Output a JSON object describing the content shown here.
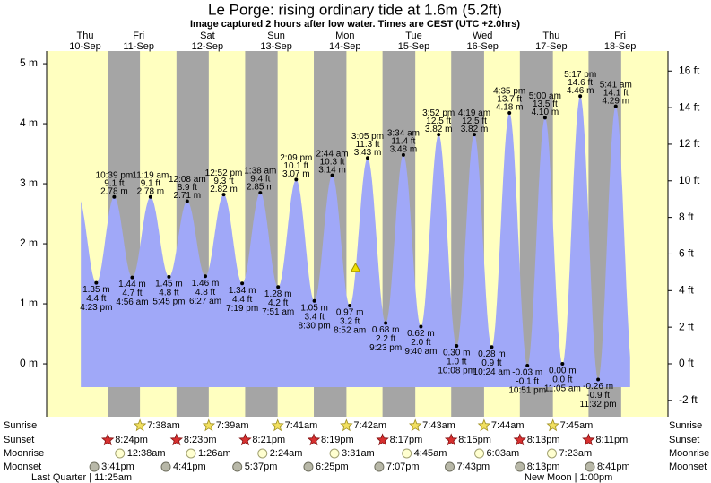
{
  "chart_data": {
    "type": "tide",
    "title": "Le Porge: rising  ordinary tide at 1.6m (5.2ft)",
    "subtitle": "Image captured 2 hours after low water. Times are CEST (UTC +2.0hrs)",
    "days": {
      "names": [
        "Thu",
        "Fri",
        "Sat",
        "Sun",
        "Mon",
        "Tue",
        "Wed",
        "Thu",
        "Fri"
      ],
      "dates": [
        "10-Sep",
        "11-Sep",
        "12-Sep",
        "13-Sep",
        "14-Sep",
        "15-Sep",
        "16-Sep",
        "17-Sep",
        "18-Sep"
      ]
    },
    "extremes": {
      "times": [
        "4:23 pm",
        "10:39 pm",
        "4:56 am",
        "11:19 am",
        "5:45 pm",
        "12:08 am",
        "6:27 am",
        "12:52 pm",
        "7:19 pm",
        "1:38 am",
        "7:51 am",
        "2:09 pm",
        "8:30 pm",
        "2:44 am",
        "8:52 am",
        "3:05 pm",
        "9:23 pm",
        "3:34 am",
        "9:40 am",
        "3:52 pm",
        "10:08 pm",
        "4:19 am",
        "10:24 am",
        "4:35 pm",
        "10:51 pm",
        "5:00 am",
        "11:05 am",
        "5:17 pm",
        "11:32 pm",
        "5:41 am"
      ],
      "values": [
        1.35,
        2.78,
        1.44,
        2.78,
        1.45,
        2.71,
        1.46,
        2.82,
        1.34,
        2.85,
        1.28,
        3.07,
        1.05,
        3.14,
        0.97,
        3.43,
        0.68,
        3.48,
        0.62,
        3.82,
        0.3,
        3.82,
        0.28,
        4.18,
        -0.03,
        4.1,
        0.0,
        4.46,
        -0.26,
        4.29
      ],
      "value_labels": [
        "1.35 m",
        "2.78 m",
        "1.44 m",
        "2.78 m",
        "1.45 m",
        "2.71 m",
        "1.46 m",
        "2.82 m",
        "1.34 m",
        "2.85 m",
        "1.28 m",
        "3.07 m",
        "1.05 m",
        "3.14 m",
        "0.97 m",
        "3.43 m",
        "0.68 m",
        "3.48 m",
        "0.62 m",
        "3.82 m",
        "0.30 m",
        "3.82 m",
        "0.28 m",
        "4.18 m",
        "-0.03 m",
        "4.10 m",
        "0.00 m",
        "4.46 m",
        "-0.26 m",
        "4.29 m"
      ],
      "ft_values": [
        4.4,
        9.1,
        4.7,
        9.1,
        4.8,
        8.9,
        4.8,
        9.3,
        4.4,
        9.4,
        4.2,
        10.1,
        3.4,
        10.3,
        3.2,
        11.3,
        2.2,
        11.4,
        2.0,
        12.5,
        1.0,
        12.5,
        0.9,
        13.7,
        -0.1,
        13.5,
        0.0,
        14.6,
        -0.9,
        14.1
      ],
      "ft_labels": [
        "4.4 ft",
        "9.1 ft",
        "4.7 ft",
        "9.1 ft",
        "4.8 ft",
        "8.9 ft",
        "4.8 ft",
        "9.3 ft",
        "4.4 ft",
        "9.4 ft",
        "4.2 ft",
        "10.1 ft",
        "3.4 ft",
        "10.3 ft",
        "3.2 ft",
        "11.3 ft",
        "2.2 ft",
        "11.4 ft",
        "2.0 ft",
        "12.5 ft",
        "1.0 ft",
        "12.5 ft",
        "0.9 ft",
        "13.7 ft",
        "-0.1 ft",
        "13.5 ft",
        "0.0 ft",
        "14.6 ft",
        "-0.9 ft",
        "14.1 ft"
      ]
    },
    "current": {
      "value": 1.6,
      "hours_after_low": 2
    },
    "ylim": [
      -0.88,
      5.21
    ],
    "yticks": [
      {
        "value": 0,
        "label": "0 m"
      },
      {
        "value": 1,
        "label": "1 m"
      },
      {
        "value": 2,
        "label": "2 m"
      },
      {
        "value": 3,
        "label": "3 m"
      },
      {
        "value": 4,
        "label": "4 m"
      },
      {
        "value": 5,
        "label": "5 m"
      }
    ],
    "y2lim": [
      -2.89,
      17.09
    ],
    "y2ticks": [
      {
        "value": -2,
        "label": "-2 ft"
      },
      {
        "value": 0,
        "label": "0 ft"
      },
      {
        "value": 2,
        "label": "2 ft"
      },
      {
        "value": 4,
        "label": "4 ft"
      },
      {
        "value": 6,
        "label": "6 ft"
      },
      {
        "value": 8,
        "label": "8 ft"
      },
      {
        "value": 10,
        "label": "10 ft"
      },
      {
        "value": 12,
        "label": "12 ft"
      },
      {
        "value": 14,
        "label": "14 ft"
      },
      {
        "value": 16,
        "label": "16 ft"
      }
    ],
    "colors": {
      "day": "#ffffc0",
      "night": "#a5a5a5",
      "water": "#a0a8f8",
      "date": "#d80000"
    },
    "almanac": [
      {
        "name": "Sunrise",
        "times": [
          "7:38am",
          "7:39am",
          "7:41am",
          "7:42am",
          "7:43am",
          "7:44am",
          "7:45am"
        ]
      },
      {
        "name": "Sunset",
        "times": [
          "8:24pm",
          "8:23pm",
          "8:21pm",
          "8:19pm",
          "8:17pm",
          "8:15pm",
          "8:13pm",
          "8:11pm"
        ]
      },
      {
        "name": "Moonrise",
        "times": [
          "12:38am",
          "1:26am",
          "2:24am",
          "3:31am",
          "4:45am",
          "6:03am",
          "7:23am"
        ]
      },
      {
        "name": "Moonset",
        "times": [
          "3:41pm",
          "4:41pm",
          "5:37pm",
          "6:25pm",
          "7:07pm",
          "7:43pm",
          "8:13pm",
          "8:41pm"
        ]
      }
    ],
    "moon_phases": [
      "Last Quarter | 11:25am",
      "New Moon | 1:00pm"
    ]
  }
}
